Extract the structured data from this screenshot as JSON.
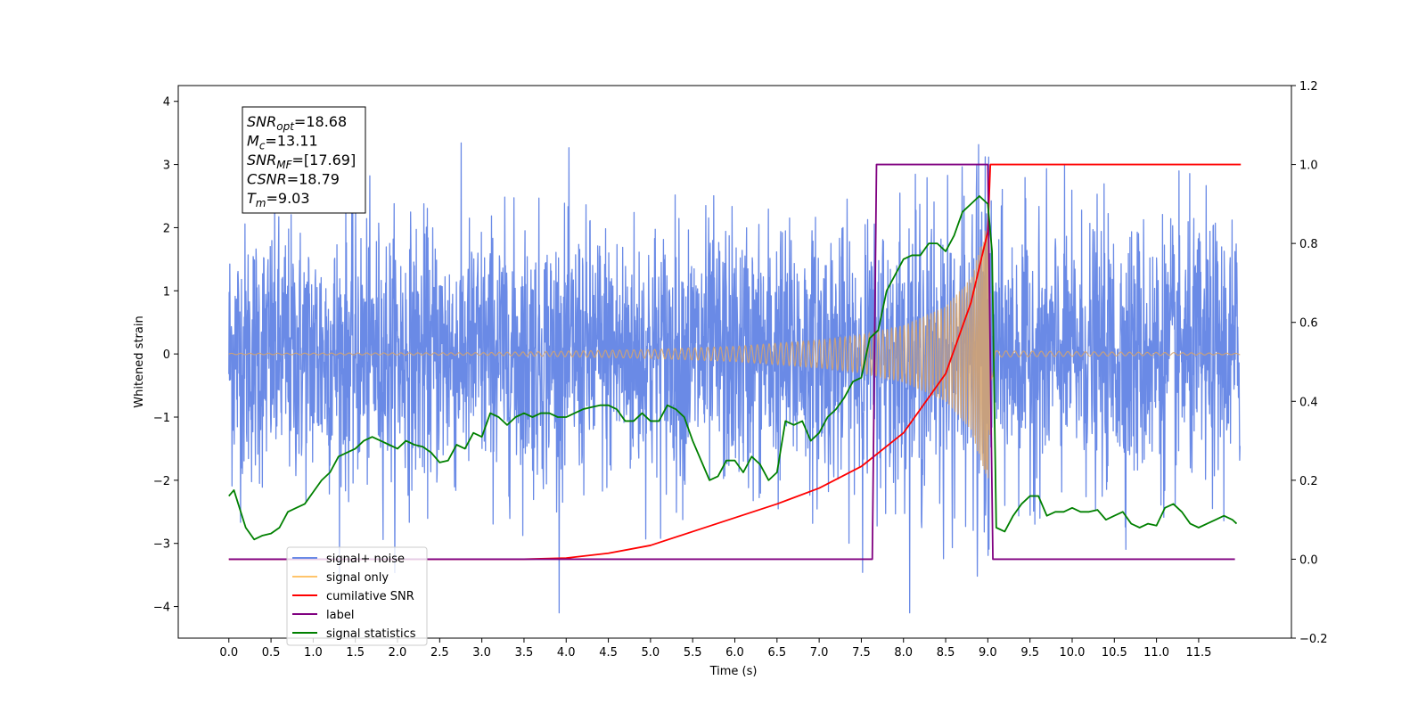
{
  "chart_data": {
    "type": "line",
    "xlabel": "Time (s)",
    "ylabel_left": "Whitened strain",
    "ylabel_right": "",
    "xlim": [
      -0.6,
      12.6
    ],
    "ylim_left": [
      -4.5,
      4.25
    ],
    "ylim_right": [
      -0.2,
      1.2
    ],
    "x_ticks": [
      "0.0",
      "0.5",
      "1.0",
      "1.5",
      "2.0",
      "2.5",
      "3.0",
      "3.5",
      "4.0",
      "4.5",
      "5.0",
      "5.5",
      "6.0",
      "6.5",
      "7.0",
      "7.5",
      "8.0",
      "8.5",
      "9.0",
      "9.5",
      "10.0",
      "10.5",
      "11.0",
      "11.5"
    ],
    "y_left_ticks": [
      "4",
      "3",
      "2",
      "1",
      "0",
      "−1",
      "−2",
      "−3",
      "−4"
    ],
    "y_right_ticks": [
      "1.2",
      "1.0",
      "0.8",
      "0.6",
      "0.4",
      "0.2",
      "0.0",
      "−0.2"
    ],
    "grid": false,
    "legend_position": "lower-left",
    "legend": [
      {
        "label": "signal+ noise",
        "color": "#6a8ae6"
      },
      {
        "label": "signal only",
        "color": "#ffc46b"
      },
      {
        "label": "cumilative SNR",
        "color": "#ff0000"
      },
      {
        "label": "label",
        "color": "#800080"
      },
      {
        "label": "signal statistics",
        "color": "#008000"
      }
    ],
    "annotation": [
      {
        "var": "SNR",
        "sub": "opt",
        "value": "=18.68"
      },
      {
        "var": "M",
        "sub": "c",
        "value": "=13.11"
      },
      {
        "var": "SNR",
        "sub": "MF",
        "value": "=[17.69]"
      },
      {
        "var": "CSNR",
        "sub": "",
        "value": "=18.79"
      },
      {
        "var": "T",
        "sub": "m",
        "value": "=9.03"
      }
    ],
    "series": [
      {
        "name": "signal+ noise",
        "axis": "left",
        "color": "#6a8ae6",
        "description": "whitened noise plus injected signal, approx. amplitude band -2.3 to 2.3, peaks to about 3.9",
        "x_range": [
          0.0,
          11.99
        ]
      },
      {
        "name": "signal only",
        "axis": "left",
        "color": "#d7a36b",
        "description": "chirp waveform growing in amplitude until merger",
        "envelope": {
          "x": [
            0.0,
            3.0,
            5.0,
            6.0,
            7.0,
            7.5,
            8.0,
            8.5,
            8.8,
            9.0,
            9.05,
            9.1,
            11.99
          ],
          "amp": [
            0.01,
            0.02,
            0.07,
            0.12,
            0.22,
            0.3,
            0.45,
            0.75,
            1.2,
            2.1,
            0.4,
            0.05,
            0.01
          ]
        }
      },
      {
        "name": "cumilative SNR",
        "axis": "right",
        "color": "#ff0000",
        "x": [
          0.0,
          3.5,
          4.0,
          4.5,
          5.0,
          5.5,
          6.0,
          6.5,
          7.0,
          7.5,
          8.0,
          8.5,
          8.8,
          9.0,
          9.03,
          12.0
        ],
        "y": [
          0.0,
          0.0,
          0.003,
          0.015,
          0.035,
          0.07,
          0.105,
          0.14,
          0.18,
          0.235,
          0.32,
          0.47,
          0.65,
          0.83,
          1.0,
          1.0
        ]
      },
      {
        "name": "label",
        "axis": "right",
        "color": "#800080",
        "x": [
          0.0,
          7.63,
          7.68,
          9.0,
          9.06,
          11.93
        ],
        "y": [
          0.0,
          0.0,
          1.0,
          1.0,
          0.0,
          0.0
        ]
      },
      {
        "name": "signal statistics",
        "axis": "right",
        "color": "#008000",
        "x": [
          0.0,
          0.06,
          0.2,
          0.3,
          0.4,
          0.5,
          0.6,
          0.7,
          0.8,
          0.9,
          1.0,
          1.1,
          1.2,
          1.3,
          1.4,
          1.5,
          1.6,
          1.7,
          1.8,
          1.9,
          2.0,
          2.1,
          2.2,
          2.3,
          2.4,
          2.5,
          2.6,
          2.7,
          2.8,
          2.9,
          3.0,
          3.1,
          3.2,
          3.3,
          3.4,
          3.5,
          3.6,
          3.7,
          3.8,
          3.9,
          4.0,
          4.1,
          4.2,
          4.3,
          4.4,
          4.5,
          4.6,
          4.7,
          4.8,
          4.9,
          5.0,
          5.1,
          5.2,
          5.3,
          5.4,
          5.5,
          5.6,
          5.7,
          5.8,
          5.9,
          6.0,
          6.1,
          6.2,
          6.3,
          6.4,
          6.5,
          6.6,
          6.7,
          6.8,
          6.9,
          7.0,
          7.1,
          7.2,
          7.3,
          7.4,
          7.5,
          7.6,
          7.7,
          7.8,
          7.9,
          8.0,
          8.1,
          8.2,
          8.3,
          8.4,
          8.5,
          8.6,
          8.7,
          8.8,
          8.9,
          9.0,
          9.05,
          9.1,
          9.2,
          9.3,
          9.4,
          9.5,
          9.6,
          9.7,
          9.8,
          9.9,
          10.0,
          10.1,
          10.2,
          10.3,
          10.4,
          10.5,
          10.6,
          10.7,
          10.8,
          10.9,
          11.0,
          11.1,
          11.2,
          11.3,
          11.4,
          11.5,
          11.6,
          11.7,
          11.8,
          11.9,
          11.95
        ],
        "y": [
          0.16,
          0.175,
          0.08,
          0.05,
          0.06,
          0.065,
          0.08,
          0.12,
          0.13,
          0.14,
          0.17,
          0.2,
          0.22,
          0.26,
          0.27,
          0.28,
          0.3,
          0.31,
          0.3,
          0.29,
          0.28,
          0.3,
          0.29,
          0.285,
          0.27,
          0.245,
          0.25,
          0.29,
          0.28,
          0.32,
          0.31,
          0.37,
          0.36,
          0.34,
          0.36,
          0.37,
          0.36,
          0.37,
          0.37,
          0.36,
          0.36,
          0.37,
          0.38,
          0.385,
          0.39,
          0.39,
          0.38,
          0.35,
          0.35,
          0.37,
          0.35,
          0.35,
          0.39,
          0.38,
          0.36,
          0.3,
          0.25,
          0.2,
          0.21,
          0.25,
          0.25,
          0.22,
          0.26,
          0.24,
          0.2,
          0.22,
          0.35,
          0.34,
          0.35,
          0.3,
          0.32,
          0.36,
          0.38,
          0.41,
          0.45,
          0.46,
          0.56,
          0.58,
          0.68,
          0.72,
          0.76,
          0.77,
          0.77,
          0.8,
          0.8,
          0.78,
          0.82,
          0.88,
          0.9,
          0.92,
          0.9,
          0.78,
          0.08,
          0.07,
          0.11,
          0.14,
          0.16,
          0.16,
          0.11,
          0.12,
          0.12,
          0.13,
          0.12,
          0.12,
          0.125,
          0.1,
          0.11,
          0.12,
          0.09,
          0.08,
          0.09,
          0.085,
          0.13,
          0.14,
          0.12,
          0.09,
          0.08,
          0.09,
          0.1,
          0.11,
          0.1,
          0.09
        ]
      }
    ]
  }
}
